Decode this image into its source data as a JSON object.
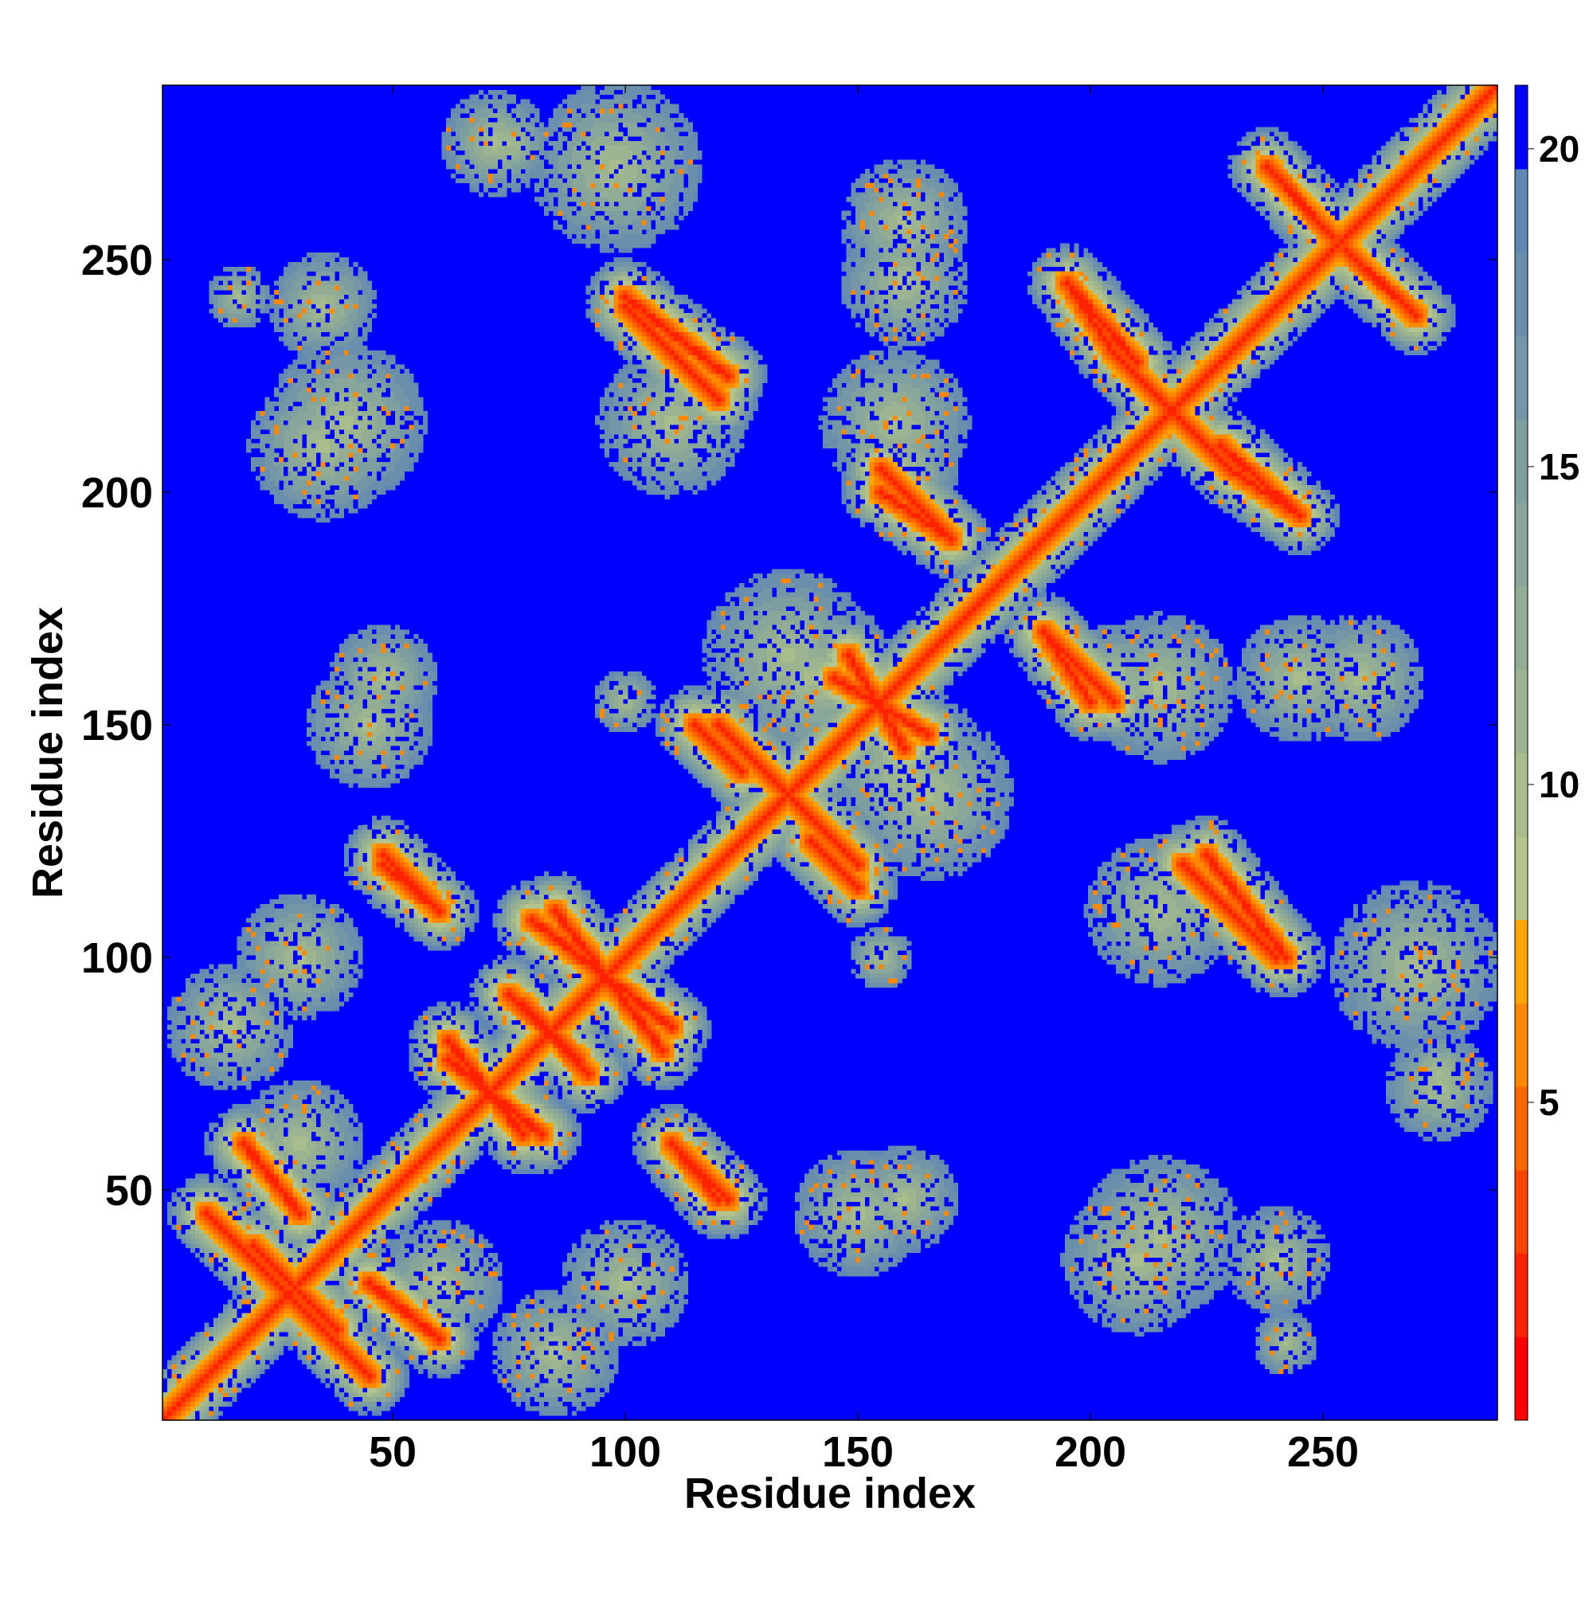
{
  "chart_data": {
    "type": "heatmap",
    "title": "",
    "xlabel": "Residue index",
    "ylabel": "Residue index",
    "x_range": [
      1,
      287
    ],
    "y_range": [
      1,
      287
    ],
    "x_ticks": [
      50,
      100,
      150,
      200,
      250
    ],
    "y_ticks": [
      50,
      100,
      150,
      200,
      250
    ],
    "x_tick_labels": [
      "50",
      "100",
      "150",
      "200",
      "250"
    ],
    "y_tick_labels": [
      "50",
      "100",
      "150",
      "200",
      "250"
    ],
    "colorbar": {
      "range": [
        0,
        21
      ],
      "ticks": [
        5,
        10,
        15,
        20
      ],
      "tick_labels": [
        "5",
        "10",
        "15",
        "20"
      ],
      "colors": [
        "#ff0000",
        "#ff2200",
        "#ff4400",
        "#ff6600",
        "#ff8800",
        "#ffa500",
        "#b4c48c",
        "#a8bc8c",
        "#9cb490",
        "#92ad94",
        "#88a69a",
        "#7e9ea0",
        "#7496a6",
        "#6a8fad",
        "#6088b4",
        "#0000ff"
      ],
      "background_color": "#0000ff"
    },
    "grid": false,
    "features": {
      "diagonal": {
        "from": 1,
        "to": 287
      },
      "antiparallel_contacts": [
        {
          "from": [
            15,
            40
          ],
          "to": [
            45,
            10
          ]
        },
        {
          "from": [
            20,
            38
          ],
          "to": [
            30,
            28
          ]
        },
        {
          "from": [
            45,
            30
          ],
          "to": [
            60,
            18
          ]
        },
        {
          "from": [
            48,
            120
          ],
          "to": [
            60,
            110
          ]
        },
        {
          "from": [
            62,
            82
          ],
          "to": [
            78,
            62
          ]
        },
        {
          "from": [
            75,
            92
          ],
          "to": [
            90,
            78
          ]
        },
        {
          "from": [
            80,
            108
          ],
          "to": [
            110,
            85
          ]
        },
        {
          "from": [
            100,
            240
          ],
          "to": [
            120,
            220
          ]
        },
        {
          "from": [
            112,
            58
          ],
          "to": [
            122,
            48
          ]
        },
        {
          "from": [
            120,
            150
          ],
          "to": [
            140,
            130
          ]
        },
        {
          "from": [
            140,
            125
          ],
          "to": [
            150,
            115
          ]
        },
        {
          "from": [
            155,
            200
          ],
          "to": [
            170,
            190
          ]
        },
        {
          "from": [
            145,
            160
          ],
          "to": [
            165,
            148
          ]
        },
        {
          "from": [
            190,
            170
          ],
          "to": [
            205,
            155
          ]
        },
        {
          "from": [
            195,
            245
          ],
          "to": [
            210,
            228
          ]
        },
        {
          "from": [
            205,
            230
          ],
          "to": [
            225,
            210
          ]
        },
        {
          "from": [
            225,
            122
          ],
          "to": [
            242,
            100
          ]
        },
        {
          "from": [
            230,
            205
          ],
          "to": [
            245,
            195
          ]
        },
        {
          "from": [
            255,
            252
          ],
          "to": [
            270,
            238
          ]
        }
      ],
      "contact_clouds": [
        {
          "center": [
            17,
            242
          ],
          "radius": 6
        },
        {
          "center": [
            35,
            240
          ],
          "radius": 8
        },
        {
          "center": [
            40,
            215
          ],
          "radius": 15
        },
        {
          "center": [
            75,
            275
          ],
          "radius": 8
        },
        {
          "center": [
            98,
            270
          ],
          "radius": 10
        },
        {
          "center": [
            160,
            245
          ],
          "radius": 12
        },
        {
          "center": [
            160,
            205
          ],
          "radius": 10
        },
        {
          "center": [
            110,
            215
          ],
          "radius": 14
        },
        {
          "center": [
            140,
            160
          ],
          "radius": 16
        },
        {
          "center": [
            165,
            135
          ],
          "radius": 16
        },
        {
          "center": [
            215,
            158
          ],
          "radius": 14
        },
        {
          "center": [
            258,
            160
          ],
          "radius": 12
        },
        {
          "center": [
            270,
            98
          ],
          "radius": 16
        },
        {
          "center": [
            275,
            72
          ],
          "radius": 10
        },
        {
          "center": [
            210,
            35
          ],
          "radius": 14
        },
        {
          "center": [
            240,
            35
          ],
          "radius": 10
        },
        {
          "center": [
            150,
            45
          ],
          "radius": 12
        },
        {
          "center": [
            15,
            85
          ],
          "radius": 12
        },
        {
          "center": [
            30,
            100
          ],
          "radius": 12
        },
        {
          "center": [
            60,
            30
          ],
          "radius": 12
        },
        {
          "center": [
            100,
            30
          ],
          "radius": 12
        },
        {
          "center": [
            48,
            160
          ],
          "radius": 10
        },
        {
          "center": [
            215,
            110
          ],
          "radius": 12
        },
        {
          "center": [
            155,
            100
          ],
          "radius": 6
        }
      ]
    }
  }
}
